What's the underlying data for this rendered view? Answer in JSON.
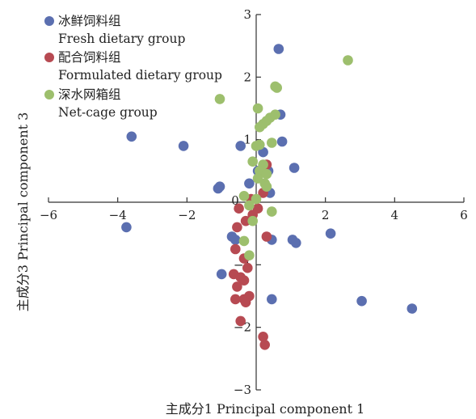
{
  "chart_data": {
    "type": "scatter",
    "xlabel": "主成分1 Principal component 1",
    "ylabel": "主成分3 Principal component 3",
    "xlim": [
      -6,
      6
    ],
    "ylim": [
      -3,
      3
    ],
    "x_ticks": [
      "−6",
      "−4",
      "−2",
      "0",
      "2",
      "4",
      "6"
    ],
    "y_ticks": [
      "3",
      "2",
      "1",
      "−1",
      "−2",
      "−3"
    ],
    "origin_label": "0",
    "legend_position": "top-left",
    "series": [
      {
        "name": "冰鲜饲料组",
        "name_en": "Fresh dietary group",
        "color": "#5b6fb0",
        "points": [
          [
            0.65,
            2.45
          ],
          [
            -3.6,
            1.05
          ],
          [
            -2.1,
            0.9
          ],
          [
            -0.45,
            0.9
          ],
          [
            0.7,
            1.4
          ],
          [
            0.75,
            0.97
          ],
          [
            0.2,
            0.8
          ],
          [
            1.1,
            0.55
          ],
          [
            0.35,
            0.5
          ],
          [
            0.05,
            0.5
          ],
          [
            -0.2,
            0.3
          ],
          [
            -1.1,
            0.22
          ],
          [
            -1.05,
            0.25
          ],
          [
            0.4,
            0.15
          ],
          [
            -3.75,
            -0.4
          ],
          [
            -0.7,
            -0.55
          ],
          [
            0.45,
            -0.6
          ],
          [
            1.05,
            -0.6
          ],
          [
            1.15,
            -0.65
          ],
          [
            2.15,
            -0.5
          ],
          [
            -1.0,
            -1.15
          ],
          [
            0.45,
            -1.55
          ],
          [
            3.05,
            -1.58
          ],
          [
            4.5,
            -1.7
          ],
          [
            -0.6,
            -0.6
          ]
        ]
      },
      {
        "name": "配合饲料组",
        "name_en": "Formulated dietary group",
        "color": "#b74a52",
        "points": [
          [
            -0.5,
            -0.1
          ],
          [
            -0.3,
            -0.3
          ],
          [
            -0.1,
            -0.2
          ],
          [
            0.05,
            -0.1
          ],
          [
            -0.55,
            -0.4
          ],
          [
            0.3,
            -0.55
          ],
          [
            -0.6,
            -0.75
          ],
          [
            -0.35,
            -0.9
          ],
          [
            -0.25,
            -1.05
          ],
          [
            -0.65,
            -1.15
          ],
          [
            -0.45,
            -1.2
          ],
          [
            -0.35,
            -1.25
          ],
          [
            -0.55,
            -1.35
          ],
          [
            -0.2,
            -1.5
          ],
          [
            -0.35,
            -1.55
          ],
          [
            -0.6,
            -1.55
          ],
          [
            -0.3,
            -1.6
          ],
          [
            -0.45,
            -1.9
          ],
          [
            0.2,
            -2.15
          ],
          [
            0.25,
            -2.28
          ],
          [
            0.3,
            0.6
          ],
          [
            0.2,
            0.15
          ],
          [
            -0.15,
            0.05
          ]
        ]
      },
      {
        "name": "深水网箱组",
        "name_en": "Net-cage group",
        "color": "#9dbf6d",
        "points": [
          [
            2.65,
            2.27
          ],
          [
            0.55,
            1.85
          ],
          [
            0.6,
            1.83
          ],
          [
            -1.05,
            1.65
          ],
          [
            0.05,
            1.5
          ],
          [
            0.4,
            1.35
          ],
          [
            0.3,
            1.3
          ],
          [
            0.55,
            1.4
          ],
          [
            0.2,
            1.25
          ],
          [
            0.1,
            1.2
          ],
          [
            0.45,
            0.95
          ],
          [
            0.1,
            0.92
          ],
          [
            0.0,
            0.9
          ],
          [
            -0.1,
            0.65
          ],
          [
            0.2,
            0.6
          ],
          [
            0.1,
            0.5
          ],
          [
            0.3,
            0.45
          ],
          [
            0.05,
            0.38
          ],
          [
            0.25,
            0.3
          ],
          [
            0.3,
            0.25
          ],
          [
            -0.35,
            0.1
          ],
          [
            0.0,
            0.05
          ],
          [
            -0.2,
            -0.05
          ],
          [
            0.45,
            -0.15
          ],
          [
            -0.1,
            -0.3
          ],
          [
            -0.35,
            -0.62
          ],
          [
            -0.2,
            -0.85
          ]
        ]
      }
    ]
  }
}
